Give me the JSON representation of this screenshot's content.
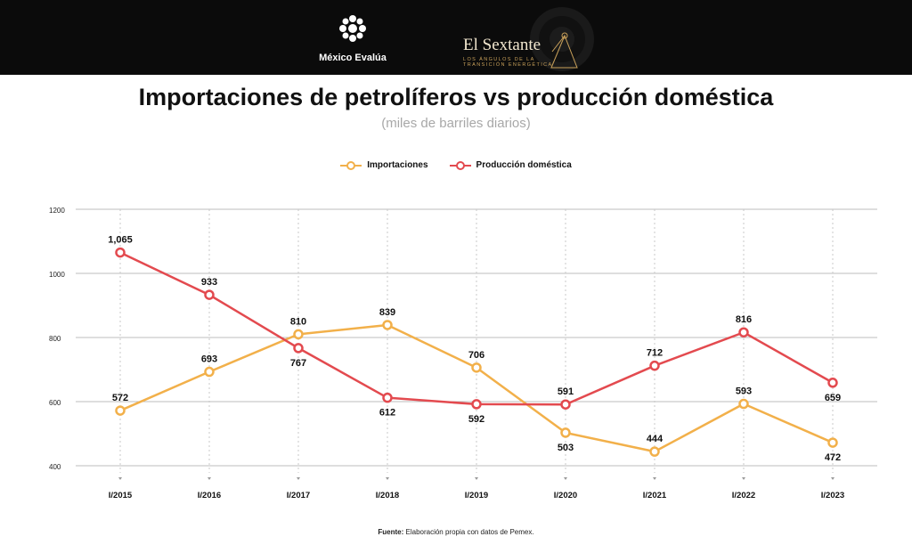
{
  "header": {
    "brand_left": "México Evalúa",
    "brand_right": "El Sextante",
    "brand_right_tagline": [
      "LOS ÁNGULOS DE LA",
      "TRANSICIÓN ENERGÉTICA"
    ]
  },
  "colors": {
    "importaciones": "#f2b04a",
    "produccion": "#e34a4f",
    "grid": "#bdbdbd",
    "topbar": "#0b0b0b"
  },
  "source": {
    "label": "Fuente:",
    "text": " Elaboración propia con datos de Pemex."
  },
  "chart_data": {
    "type": "line",
    "title": "Importaciones de petrolíferos vs producción doméstica",
    "subtitle": "(miles de barriles diarios)",
    "categories": [
      "I/2015",
      "I/2016",
      "I/2017",
      "I/2018",
      "I/2019",
      "I/2020",
      "I/2021",
      "I/2022",
      "I/2023"
    ],
    "ylim": [
      400,
      1200
    ],
    "yticks": [
      "400",
      "600",
      "800",
      "1000",
      "1200"
    ],
    "grid": true,
    "legend": "top-center",
    "series": [
      {
        "name": "Importaciones",
        "color": "#f2b04a",
        "values": [
          572,
          693,
          810,
          839,
          706,
          503,
          444,
          593,
          472
        ],
        "labels": [
          "572",
          "693",
          "810",
          "839",
          "706",
          "503",
          "444",
          "593",
          "472"
        ],
        "label_pos": [
          "above",
          "above",
          "above",
          "above",
          "above",
          "below",
          "above",
          "above",
          "below"
        ]
      },
      {
        "name": "Producción doméstica",
        "color": "#e34a4f",
        "values": [
          1065,
          933,
          767,
          612,
          592,
          591,
          712,
          816,
          659
        ],
        "labels": [
          "1,065",
          "933",
          "767",
          "612",
          "592",
          "591",
          "712",
          "816",
          "659"
        ],
        "label_pos": [
          "above",
          "above",
          "below",
          "below",
          "below",
          "above",
          "above",
          "above",
          "below"
        ]
      }
    ]
  }
}
